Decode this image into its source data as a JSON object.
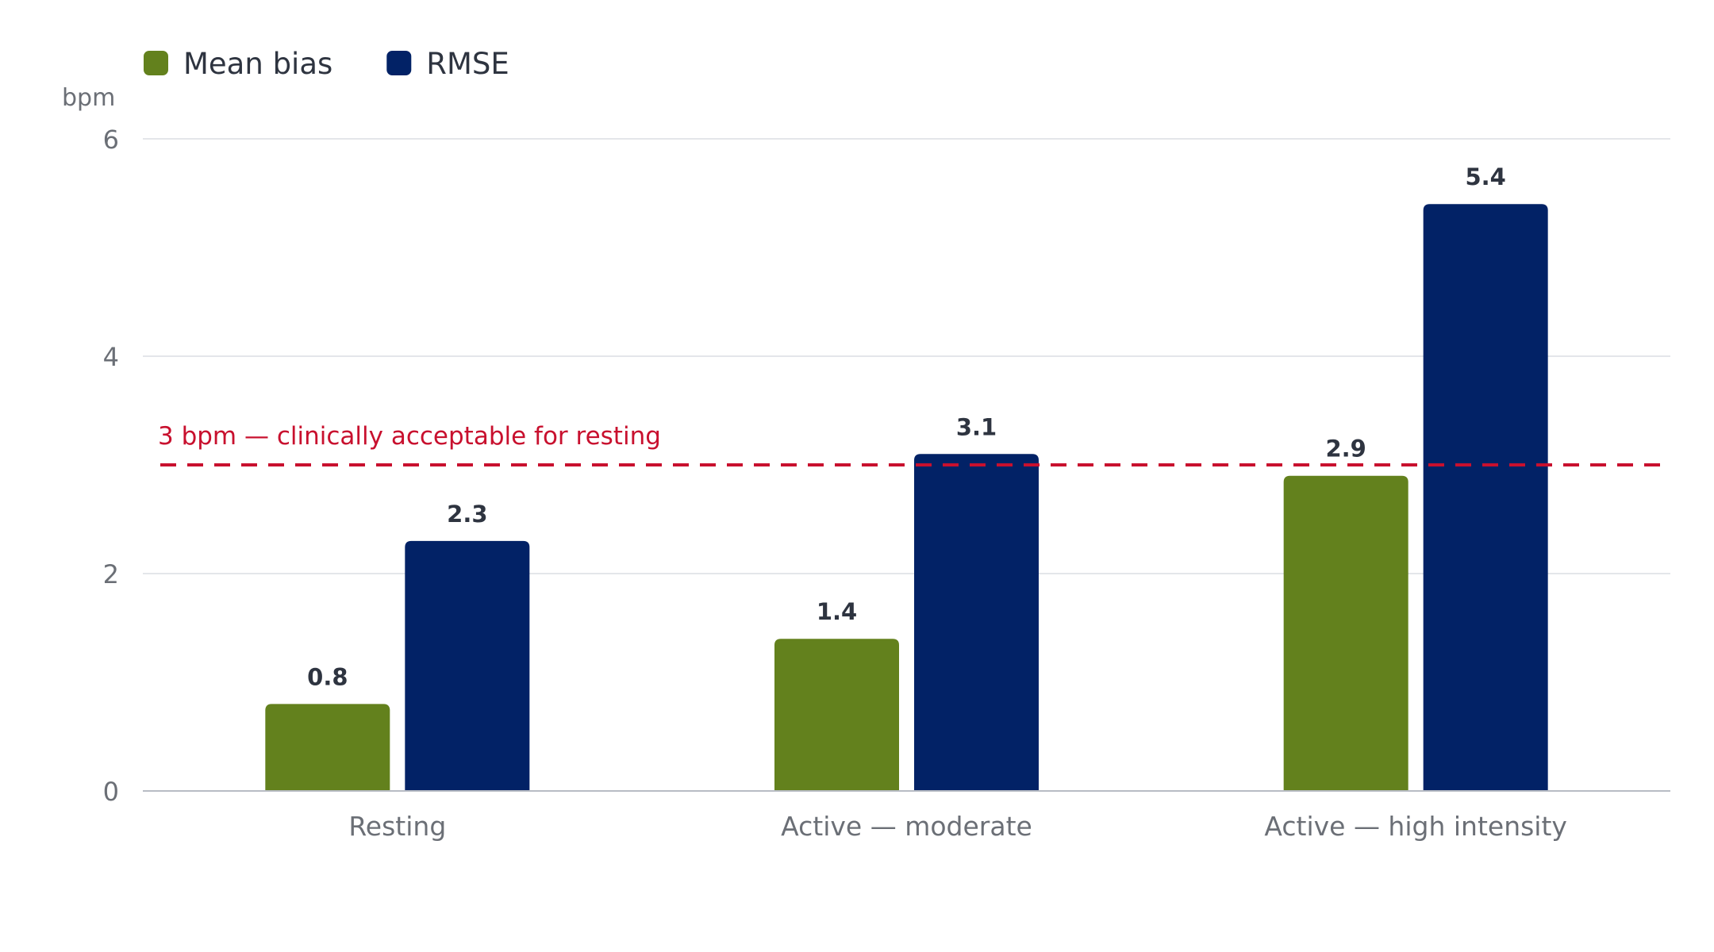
{
  "chart_data": {
    "type": "bar",
    "categories": [
      "Resting",
      "Active — moderate",
      "Active — high intensity"
    ],
    "series": [
      {
        "name": "Mean bias",
        "values": [
          0.8,
          1.4,
          2.9
        ],
        "color": "#63811d"
      },
      {
        "name": "RMSE",
        "values": [
          2.3,
          3.1,
          5.4
        ],
        "color": "#022266"
      }
    ],
    "ylabel": "bpm",
    "ylim": [
      0,
      6
    ],
    "yticks": [
      0,
      2,
      4,
      6
    ],
    "grid": true,
    "legend_position": "top-left",
    "reference_line": {
      "value": 3,
      "label": "3 bpm — clinically acceptable for resting",
      "color": "#c8102e",
      "style": "dashed"
    }
  }
}
